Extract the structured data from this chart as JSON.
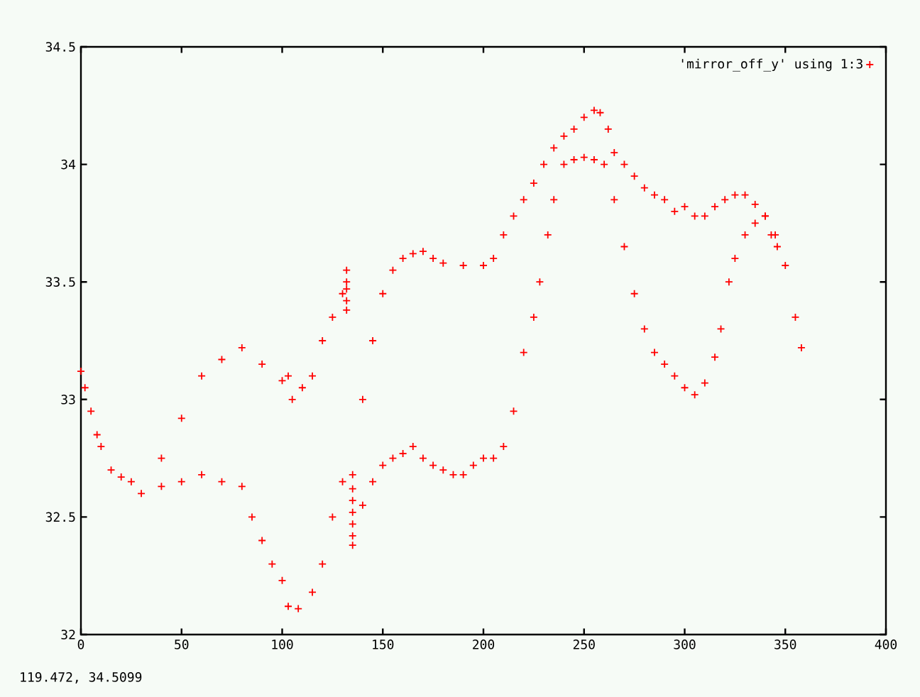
{
  "chart_data": {
    "type": "scatter",
    "xlim": [
      0,
      400
    ],
    "ylim": [
      32,
      34.5
    ],
    "xticks": [
      0,
      50,
      100,
      150,
      200,
      250,
      300,
      350,
      400
    ],
    "yticks": [
      32,
      32.5,
      33,
      33.5,
      34,
      34.5
    ],
    "grid": false,
    "legend": "top right",
    "marker": "cross",
    "annotations": [
      "119.472,  34.5099"
    ],
    "series": [
      {
        "name": "'mirror_off_y' using 1:3",
        "color": "#ff0000",
        "x": [
          0,
          2,
          5,
          8,
          10,
          15,
          20,
          25,
          30,
          40,
          50,
          60,
          70,
          80,
          90,
          100,
          103,
          105,
          110,
          115,
          120,
          125,
          130,
          132,
          132,
          132,
          132,
          132,
          40,
          50,
          60,
          70,
          80,
          85,
          90,
          95,
          100,
          103,
          108,
          115,
          120,
          125,
          130,
          135,
          135,
          135,
          135,
          135,
          135,
          135,
          140,
          145,
          150,
          155,
          160,
          165,
          170,
          175,
          180,
          190,
          200,
          205,
          210,
          215,
          220,
          225,
          230,
          235,
          240,
          245,
          250,
          255,
          258,
          262,
          265,
          270,
          275,
          280,
          285,
          290,
          295,
          300,
          305,
          310,
          315,
          320,
          325,
          330,
          335,
          340,
          345,
          350,
          355,
          358,
          140,
          145,
          150,
          155,
          160,
          165,
          170,
          175,
          180,
          185,
          190,
          195,
          200,
          205,
          210,
          215,
          220,
          225,
          228,
          232,
          235,
          240,
          245,
          250,
          255,
          260,
          265,
          270,
          275,
          280,
          285,
          290,
          295,
          300,
          305,
          310,
          315,
          318,
          322,
          325,
          330,
          335,
          340,
          343,
          346
        ],
        "values": [
          33.12,
          33.05,
          32.95,
          32.85,
          32.8,
          32.7,
          32.67,
          32.65,
          32.6,
          32.75,
          32.92,
          33.1,
          33.17,
          33.22,
          33.15,
          33.08,
          33.1,
          33.0,
          33.05,
          33.1,
          33.25,
          33.35,
          33.45,
          33.38,
          33.42,
          33.47,
          33.5,
          33.55,
          32.63,
          32.65,
          32.68,
          32.65,
          32.63,
          32.5,
          32.4,
          32.3,
          32.23,
          32.12,
          32.11,
          32.18,
          32.3,
          32.5,
          32.65,
          32.38,
          32.42,
          32.47,
          32.52,
          32.57,
          32.62,
          32.68,
          33.0,
          33.25,
          33.45,
          33.55,
          33.6,
          33.62,
          33.63,
          33.6,
          33.58,
          33.57,
          33.57,
          33.6,
          33.7,
          33.78,
          33.85,
          33.92,
          34.0,
          34.07,
          34.12,
          34.15,
          34.2,
          34.23,
          34.22,
          34.15,
          34.05,
          34.0,
          33.95,
          33.9,
          33.87,
          33.85,
          33.8,
          33.82,
          33.78,
          33.78,
          33.82,
          33.85,
          33.87,
          33.87,
          33.83,
          33.78,
          33.7,
          33.57,
          33.35,
          33.22,
          32.55,
          32.65,
          32.72,
          32.75,
          32.77,
          32.8,
          32.75,
          32.72,
          32.7,
          32.68,
          32.68,
          32.72,
          32.75,
          32.75,
          32.8,
          32.95,
          33.2,
          33.35,
          33.5,
          33.7,
          33.85,
          34.0,
          34.02,
          34.03,
          34.02,
          34.0,
          33.85,
          33.65,
          33.45,
          33.3,
          33.2,
          33.15,
          33.1,
          33.05,
          33.02,
          33.07,
          33.18,
          33.3,
          33.5,
          33.6,
          33.7,
          33.75,
          33.78,
          33.7,
          33.65
        ]
      }
    ]
  }
}
